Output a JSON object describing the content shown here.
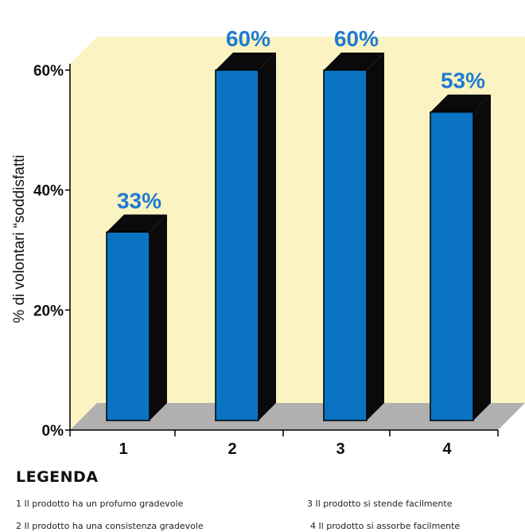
{
  "chart_data": {
    "type": "bar",
    "title": "",
    "xlabel": "",
    "ylabel": "% di volontari “soddisfatti",
    "categories": [
      "1",
      "2",
      "3",
      "4"
    ],
    "values": [
      33,
      60,
      60,
      53
    ],
    "value_labels": [
      "33%",
      "60%",
      "60%",
      "53%"
    ],
    "y_ticks": [
      "0%",
      "20%",
      "40%",
      "60%"
    ],
    "ylim": [
      0,
      60
    ],
    "grid": false,
    "colors": {
      "bar_face": "#0a73c2",
      "bar_side": "#0a0a0a",
      "back_wall": "#fbf4c2",
      "floor": "#b0b0b0",
      "value_label": "#1f7bd0"
    }
  },
  "legend": {
    "title": "LEGENDA",
    "items": [
      "1 Il prodotto ha un profumo gradevole",
      "2 Il prodotto ha una consistenza gradevole",
      "3 Il prodotto si stende facilmente",
      "4 Il prodotto si assorbe facilmente"
    ]
  }
}
